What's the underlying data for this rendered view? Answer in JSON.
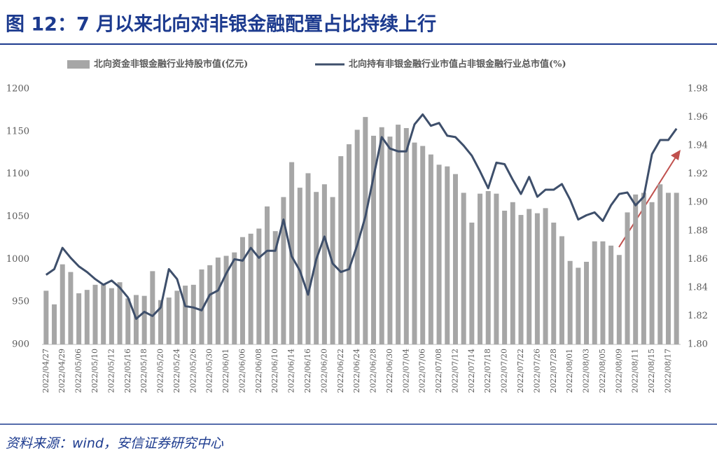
{
  "title": "图 12：7 月以来北向对非银金融配置占比持续上行",
  "source": "资料来源：wind，安信证券研究中心",
  "chart_data": {
    "type": "bar_line",
    "categories": [
      "2022/04/27",
      null,
      "2022/04/29",
      null,
      "2022/05/06",
      null,
      "2022/05/10",
      null,
      "2022/05/12",
      null,
      "2022/05/16",
      null,
      "2022/05/18",
      null,
      "2022/05/20",
      null,
      "2022/05/24",
      null,
      "2022/05/26",
      null,
      "2022/05/30",
      null,
      "2022/06/01",
      null,
      "2022/06/06",
      null,
      "2022/06/08",
      null,
      "2022/06/10",
      null,
      "2022/06/14",
      null,
      "2022/06/16",
      null,
      "2022/06/20",
      null,
      "2022/06/22",
      null,
      "2022/06/24",
      null,
      "2022/06/28",
      null,
      "2022/06/30",
      null,
      "2022/07/04",
      null,
      "2022/07/06",
      null,
      "2022/07/08",
      null,
      "2022/07/12",
      null,
      "2022/07/14",
      null,
      "2022/07/18",
      null,
      "2022/07/20",
      null,
      "2022/07/22",
      null,
      "2022/07/26",
      null,
      "2022/07/28",
      null,
      "2022/08/01",
      null,
      "2022/08/03",
      null,
      "2022/08/05",
      null,
      "2022/08/09",
      null,
      "2022/08/11",
      null,
      "2022/08/15",
      null,
      "2022/08/17",
      null
    ],
    "series": [
      {
        "name": "北向资金非银金融行业持股市值(亿元)",
        "type": "bar",
        "color": "#a6a6a6",
        "values": [
          963,
          947,
          994,
          985,
          960,
          964,
          970,
          970,
          966,
          973,
          954,
          958,
          957,
          986,
          952,
          955,
          963,
          969,
          970,
          988,
          993,
          1002,
          1004,
          1008,
          1026,
          1030,
          1036,
          1062,
          1033,
          1073,
          1114,
          1084,
          1101,
          1079,
          1088,
          1073,
          1121,
          1135,
          1152,
          1167,
          1145,
          1155,
          1144,
          1158,
          1154,
          1137,
          1133,
          1123,
          1111,
          1109,
          1100,
          1078,
          1043,
          1077,
          1080,
          1077,
          1057,
          1067,
          1052,
          1059,
          1054,
          1060,
          1043,
          1027,
          998,
          990,
          997,
          1021,
          1021,
          1016,
          1005,
          1055,
          1076,
          1078,
          1067,
          1088,
          1078,
          1078
        ]
      },
      {
        "name": "北向持有非银金融行业市值占非银金融行业总市值(%)",
        "type": "line",
        "axis": "y2",
        "color": "#3e4f6b",
        "values": [
          1.849,
          1.853,
          1.868,
          1.861,
          1.855,
          1.851,
          1.846,
          1.842,
          1.845,
          1.84,
          1.833,
          1.818,
          1.823,
          1.82,
          1.826,
          1.853,
          1.846,
          1.827,
          1.826,
          1.824,
          1.835,
          1.838,
          1.85,
          1.86,
          1.859,
          1.868,
          1.861,
          1.866,
          1.866,
          1.888,
          1.862,
          1.852,
          1.835,
          1.86,
          1.876,
          1.857,
          1.851,
          1.853,
          1.87,
          1.89,
          1.918,
          1.946,
          1.938,
          1.936,
          1.936,
          1.955,
          1.962,
          1.954,
          1.956,
          1.947,
          1.946,
          1.94,
          1.933,
          1.922,
          1.91,
          1.928,
          1.927,
          1.916,
          1.906,
          1.918,
          1.904,
          1.909,
          1.909,
          1.913,
          1.902,
          1.888,
          1.891,
          1.893,
          1.887,
          1.898,
          1.906,
          1.907,
          1.898,
          1.904,
          1.934,
          1.944,
          1.944,
          1.952
        ]
      }
    ],
    "ylim": [
      900,
      1200
    ],
    "yticks": [
      900,
      950,
      1000,
      1050,
      1100,
      1150,
      1200
    ],
    "y2lim": [
      1.8,
      1.98
    ],
    "y2ticks": [
      {
        "value": 1.8,
        "label": "1.80"
      },
      {
        "value": 1.82,
        "label": "1.82"
      },
      {
        "value": 1.84,
        "label": "1.84"
      },
      {
        "value": 1.86,
        "label": "1.86"
      },
      {
        "value": 1.88,
        "label": "1.88"
      },
      {
        "value": 1.9,
        "label": "1.90"
      },
      {
        "value": 1.92,
        "label": "1.92"
      },
      {
        "value": 1.94,
        "label": "1.94"
      },
      {
        "value": 1.96,
        "label": "1.96"
      },
      {
        "value": 1.98,
        "label": "1.98"
      }
    ]
  }
}
